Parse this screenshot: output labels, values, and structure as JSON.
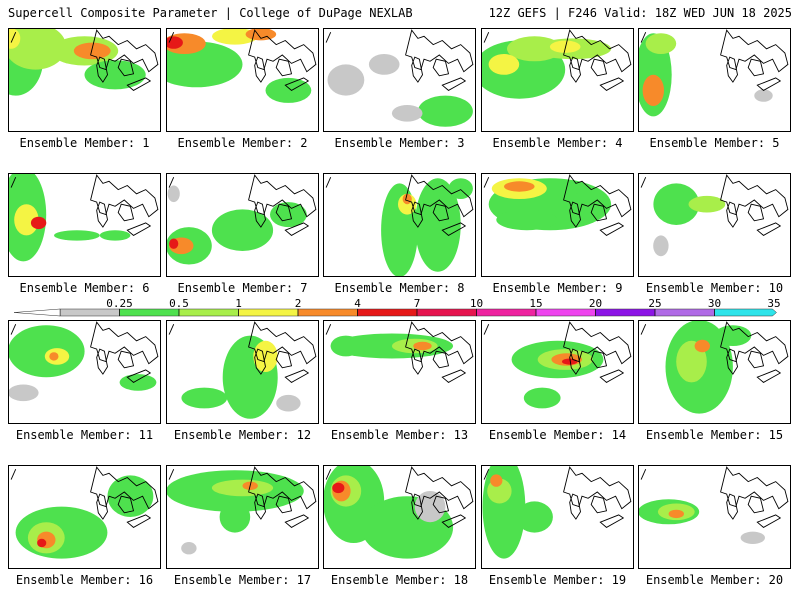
{
  "header": {
    "left": "Supercell Composite Parameter | College of DuPage NEXLAB",
    "right": "12Z GEFS | F246 Valid: 18Z WED JUN 18 2025"
  },
  "colors": {
    "0.25": "#c8c8c8",
    "0.5": "#4ee14e",
    "1": "#a8ee4a",
    "2": "#f4f444",
    "4": "#f78a2a",
    "7": "#e61818",
    "10": "#e6144e",
    "15": "#ee22a0",
    "20": "#ee44ee",
    "25": "#8c14e6",
    "30": "#b06ae6",
    "35": "#2ee4ea"
  },
  "colorbar": {
    "ticks": [
      "0.25",
      "0.5",
      "1",
      "2",
      "4",
      "7",
      "10",
      "15",
      "20",
      "25",
      "30",
      "35"
    ]
  },
  "members": [
    {
      "label": "Ensemble Member: 1",
      "blobs": [
        [
          0.05,
          0.3,
          0.18,
          0.35,
          1
        ],
        [
          0.18,
          0.18,
          0.2,
          0.22,
          2
        ],
        [
          0.5,
          0.22,
          0.22,
          0.14,
          2
        ],
        [
          0.55,
          0.22,
          0.12,
          0.08,
          4
        ],
        [
          0.02,
          0.1,
          0.06,
          0.1,
          3
        ],
        [
          0.7,
          0.45,
          0.2,
          0.14,
          1
        ]
      ]
    },
    {
      "label": "Ensemble Member: 2",
      "blobs": [
        [
          0.2,
          0.35,
          0.3,
          0.22,
          1
        ],
        [
          0.12,
          0.15,
          0.14,
          0.1,
          4
        ],
        [
          0.05,
          0.14,
          0.06,
          0.06,
          5
        ],
        [
          0.45,
          0.08,
          0.15,
          0.08,
          3
        ],
        [
          0.62,
          0.06,
          0.1,
          0.06,
          4
        ],
        [
          0.8,
          0.6,
          0.15,
          0.12,
          1
        ]
      ]
    },
    {
      "label": "Ensemble Member: 3",
      "blobs": [
        [
          0.15,
          0.5,
          0.12,
          0.15,
          0
        ],
        [
          0.4,
          0.35,
          0.1,
          0.1,
          0
        ],
        [
          0.8,
          0.8,
          0.18,
          0.15,
          1
        ],
        [
          0.55,
          0.82,
          0.1,
          0.08,
          0
        ]
      ]
    },
    {
      "label": "Ensemble Member: 4",
      "blobs": [
        [
          0.25,
          0.4,
          0.3,
          0.28,
          1
        ],
        [
          0.35,
          0.2,
          0.18,
          0.12,
          2
        ],
        [
          0.6,
          0.2,
          0.25,
          0.1,
          2
        ],
        [
          0.55,
          0.18,
          0.1,
          0.06,
          3
        ],
        [
          0.15,
          0.35,
          0.1,
          0.1,
          3
        ]
      ]
    },
    {
      "label": "Ensemble Member: 5",
      "blobs": [
        [
          0.1,
          0.45,
          0.12,
          0.4,
          1
        ],
        [
          0.1,
          0.6,
          0.07,
          0.15,
          4
        ],
        [
          0.15,
          0.15,
          0.1,
          0.1,
          2
        ],
        [
          0.82,
          0.65,
          0.06,
          0.06,
          0
        ]
      ]
    },
    {
      "label": "Ensemble Member: 6",
      "blobs": [
        [
          0.1,
          0.4,
          0.15,
          0.45,
          1
        ],
        [
          0.12,
          0.45,
          0.08,
          0.15,
          3
        ],
        [
          0.2,
          0.48,
          0.05,
          0.06,
          5
        ],
        [
          0.45,
          0.6,
          0.15,
          0.05,
          1
        ],
        [
          0.7,
          0.6,
          0.1,
          0.05,
          1
        ]
      ]
    },
    {
      "label": "Ensemble Member: 7",
      "blobs": [
        [
          0.15,
          0.7,
          0.15,
          0.18,
          1
        ],
        [
          0.1,
          0.7,
          0.08,
          0.08,
          4
        ],
        [
          0.05,
          0.68,
          0.03,
          0.05,
          5
        ],
        [
          0.5,
          0.55,
          0.2,
          0.2,
          1
        ],
        [
          0.8,
          0.4,
          0.12,
          0.12,
          1
        ],
        [
          0.05,
          0.2,
          0.04,
          0.08,
          0
        ]
      ]
    },
    {
      "label": "Ensemble Member: 8",
      "blobs": [
        [
          0.5,
          0.55,
          0.12,
          0.45,
          1
        ],
        [
          0.75,
          0.5,
          0.15,
          0.45,
          1
        ],
        [
          0.55,
          0.3,
          0.06,
          0.1,
          3
        ],
        [
          0.55,
          0.25,
          0.03,
          0.05,
          4
        ],
        [
          0.9,
          0.15,
          0.08,
          0.1,
          1
        ]
      ]
    },
    {
      "label": "Ensemble Member: 9",
      "blobs": [
        [
          0.45,
          0.3,
          0.4,
          0.25,
          1
        ],
        [
          0.25,
          0.15,
          0.18,
          0.1,
          3
        ],
        [
          0.25,
          0.13,
          0.1,
          0.05,
          4
        ],
        [
          0.3,
          0.45,
          0.2,
          0.1,
          1
        ],
        [
          0.7,
          0.3,
          0.15,
          0.12,
          1
        ]
      ]
    },
    {
      "label": "Ensemble Member: 10",
      "blobs": [
        [
          0.25,
          0.3,
          0.15,
          0.2,
          1
        ],
        [
          0.45,
          0.3,
          0.12,
          0.08,
          2
        ],
        [
          0.15,
          0.7,
          0.05,
          0.1,
          0
        ]
      ]
    },
    {
      "label": "Ensemble Member: 11",
      "blobs": [
        [
          0.25,
          0.3,
          0.25,
          0.25,
          1
        ],
        [
          0.32,
          0.35,
          0.08,
          0.08,
          3
        ],
        [
          0.3,
          0.35,
          0.03,
          0.04,
          4
        ],
        [
          0.85,
          0.6,
          0.12,
          0.08,
          1
        ],
        [
          0.1,
          0.7,
          0.1,
          0.08,
          0
        ]
      ]
    },
    {
      "label": "Ensemble Member: 12",
      "blobs": [
        [
          0.55,
          0.55,
          0.18,
          0.4,
          1
        ],
        [
          0.25,
          0.75,
          0.15,
          0.1,
          1
        ],
        [
          0.65,
          0.35,
          0.08,
          0.15,
          3
        ],
        [
          0.8,
          0.8,
          0.08,
          0.08,
          0
        ]
      ]
    },
    {
      "label": "Ensemble Member: 13",
      "blobs": [
        [
          0.45,
          0.25,
          0.4,
          0.12,
          1
        ],
        [
          0.6,
          0.25,
          0.15,
          0.07,
          2
        ],
        [
          0.65,
          0.25,
          0.06,
          0.04,
          4
        ],
        [
          0.15,
          0.25,
          0.1,
          0.1,
          1
        ]
      ]
    },
    {
      "label": "Ensemble Member: 14",
      "blobs": [
        [
          0.5,
          0.38,
          0.3,
          0.18,
          1
        ],
        [
          0.55,
          0.38,
          0.18,
          0.1,
          2
        ],
        [
          0.56,
          0.38,
          0.1,
          0.06,
          4
        ],
        [
          0.58,
          0.4,
          0.05,
          0.03,
          5
        ],
        [
          0.4,
          0.75,
          0.12,
          0.1,
          1
        ]
      ]
    },
    {
      "label": "Ensemble Member: 15",
      "blobs": [
        [
          0.4,
          0.45,
          0.22,
          0.45,
          1
        ],
        [
          0.35,
          0.4,
          0.1,
          0.2,
          2
        ],
        [
          0.42,
          0.25,
          0.05,
          0.06,
          4
        ],
        [
          0.62,
          0.15,
          0.12,
          0.1,
          1
        ]
      ]
    },
    {
      "label": "Ensemble Member: 16",
      "blobs": [
        [
          0.35,
          0.65,
          0.3,
          0.25,
          1
        ],
        [
          0.25,
          0.7,
          0.12,
          0.15,
          2
        ],
        [
          0.25,
          0.72,
          0.06,
          0.08,
          4
        ],
        [
          0.22,
          0.75,
          0.03,
          0.04,
          5
        ],
        [
          0.8,
          0.3,
          0.15,
          0.2,
          1
        ]
      ]
    },
    {
      "label": "Ensemble Member: 17",
      "blobs": [
        [
          0.45,
          0.25,
          0.45,
          0.2,
          1
        ],
        [
          0.5,
          0.22,
          0.2,
          0.08,
          2
        ],
        [
          0.55,
          0.2,
          0.05,
          0.04,
          4
        ],
        [
          0.45,
          0.5,
          0.1,
          0.15,
          1
        ],
        [
          0.15,
          0.8,
          0.05,
          0.06,
          0
        ]
      ]
    },
    {
      "label": "Ensemble Member: 18",
      "blobs": [
        [
          0.2,
          0.35,
          0.2,
          0.4,
          1
        ],
        [
          0.15,
          0.25,
          0.1,
          0.15,
          2
        ],
        [
          0.12,
          0.25,
          0.06,
          0.1,
          4
        ],
        [
          0.1,
          0.22,
          0.04,
          0.05,
          5
        ],
        [
          0.55,
          0.6,
          0.3,
          0.3,
          1
        ],
        [
          0.7,
          0.4,
          0.1,
          0.15,
          0
        ]
      ]
    },
    {
      "label": "Ensemble Member: 19",
      "blobs": [
        [
          0.15,
          0.4,
          0.14,
          0.5,
          1
        ],
        [
          0.12,
          0.25,
          0.08,
          0.12,
          2
        ],
        [
          0.1,
          0.15,
          0.04,
          0.06,
          4
        ],
        [
          0.35,
          0.5,
          0.12,
          0.15,
          1
        ]
      ]
    },
    {
      "label": "Ensemble Member: 20",
      "blobs": [
        [
          0.2,
          0.45,
          0.2,
          0.12,
          1
        ],
        [
          0.25,
          0.45,
          0.12,
          0.08,
          2
        ],
        [
          0.25,
          0.47,
          0.05,
          0.04,
          4
        ],
        [
          0.75,
          0.7,
          0.08,
          0.06,
          0
        ]
      ]
    }
  ]
}
